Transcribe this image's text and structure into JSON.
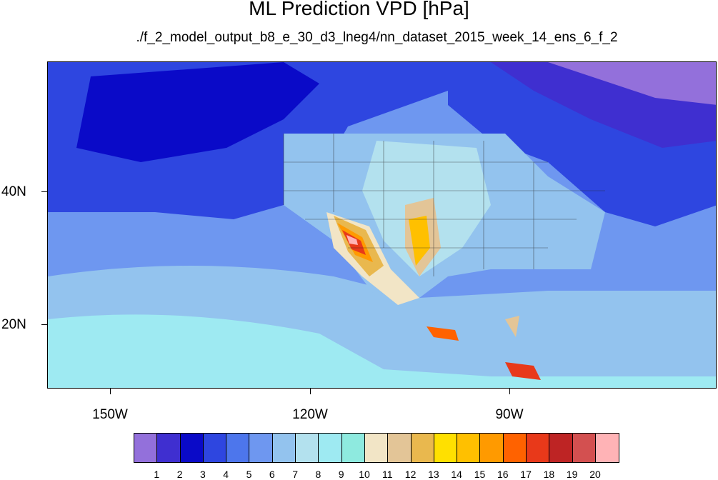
{
  "title": "ML Prediction VPD [hPa]",
  "subtitle": "./f_2_model_output_b8_e_30_d3_lneg4/nn_dataset_2015_week_14_ens_6_f_2",
  "map": {
    "lon_labels": [
      "150W",
      "120W",
      "90W"
    ],
    "lat_labels": [
      "40N",
      "20N"
    ],
    "colorbar": {
      "colors": [
        "#9370db",
        "#3f2fd0",
        "#0a0ac8",
        "#2e46e0",
        "#4d76ec",
        "#6e97f0",
        "#93c3ee",
        "#b3e1ee",
        "#9eeaf2",
        "#8eeadf",
        "#f2e5c6",
        "#e3c597",
        "#e9b84e",
        "#ffe000",
        "#ffc000",
        "#ff9a00",
        "#ff6200",
        "#e8391a",
        "#be2424",
        "#d35050",
        "#ffb3b6"
      ],
      "labels": [
        "1",
        "2",
        "3",
        "4",
        "5",
        "6",
        "7",
        "8",
        "9",
        "10",
        "11",
        "12",
        "13",
        "14",
        "15",
        "16",
        "17",
        "18",
        "19",
        "20"
      ]
    }
  }
}
